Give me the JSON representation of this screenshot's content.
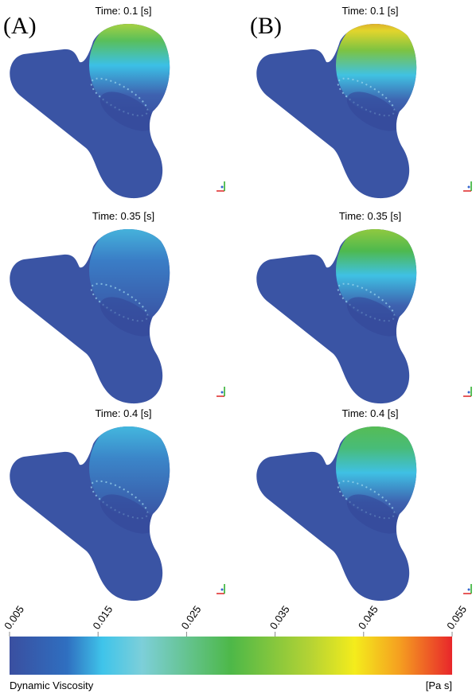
{
  "panels": [
    {
      "label": "(A)",
      "frames": [
        {
          "time": "Time: 0.1 [s]"
        },
        {
          "time": "Time: 0.35 [s]"
        },
        {
          "time": "Time: 0.4 [s]"
        }
      ]
    },
    {
      "label": "(B)",
      "frames": [
        {
          "time": "Time: 0.1 [s]"
        },
        {
          "time": "Time: 0.35 [s]"
        },
        {
          "time": "Time: 0.4 [s]"
        }
      ]
    }
  ],
  "colorbar": {
    "ticks": [
      "0.005",
      "0.015",
      "0.025",
      "0.035",
      "0.045",
      "0.055"
    ],
    "title": "Dynamic Viscosity",
    "units": "[Pa s]"
  }
}
